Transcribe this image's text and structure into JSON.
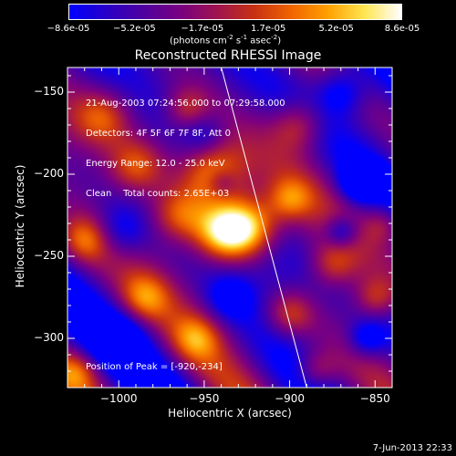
{
  "colorbar": {
    "ticks": [
      "-8.6e-05",
      "-5.2e-05",
      "-1.7e-05",
      "1.7e-05",
      "5.2e-05",
      "8.6e-05"
    ],
    "tick_values": [
      -8.6e-05,
      -5.2e-05,
      -1.7e-05,
      1.7e-05,
      5.2e-05,
      8.6e-05
    ],
    "units_prefix": "(photons cm",
    "units_sup1": "-2",
    "units_mid": " s",
    "units_sup2": "-1",
    "units_mid2": " asec",
    "units_sup3": "-2",
    "units_suffix": ")",
    "colors": [
      "#0000ff",
      "#2a00c8",
      "#5000a0",
      "#7a0082",
      "#a01450",
      "#c83214",
      "#f06400",
      "#ffa000",
      "#ffe650",
      "#ffffff"
    ]
  },
  "chart_data": {
    "type": "heatmap",
    "title": "Reconstructed RHESSI Image",
    "xlabel": "Heliocentric X (arcsec)",
    "ylabel": "Heliocentric Y (arcsec)",
    "xlim": [
      -1030,
      -840
    ],
    "ylim": [
      -330,
      -135
    ],
    "x_ticks": [
      -1000,
      -950,
      -900,
      -850
    ],
    "x_tick_labels": [
      "−1000",
      "−950",
      "−900",
      "−850"
    ],
    "y_ticks": [
      -150,
      -200,
      -250,
      -300
    ],
    "y_tick_labels": [
      "−150",
      "−200",
      "−250",
      "−300"
    ],
    "value_range": [
      -8.6e-05,
      8.6e-05
    ],
    "peak": [
      -920,
      -234
    ],
    "sources": [
      {
        "x": -925,
        "y": -232,
        "amp": 1.0,
        "s": 13
      },
      {
        "x": -945,
        "y": -200,
        "amp": 0.8,
        "s": 14
      },
      {
        "x": -940,
        "y": -235,
        "amp": 0.8,
        "s": 12
      },
      {
        "x": -965,
        "y": -225,
        "amp": 0.6,
        "s": 12
      },
      {
        "x": -990,
        "y": -195,
        "amp": 0.55,
        "s": 12
      },
      {
        "x": -1010,
        "y": -165,
        "amp": 0.5,
        "s": 12
      },
      {
        "x": -1020,
        "y": -240,
        "amp": 0.5,
        "s": 10
      },
      {
        "x": -985,
        "y": -275,
        "amp": 0.45,
        "s": 10
      },
      {
        "x": -955,
        "y": -300,
        "amp": 0.45,
        "s": 10
      },
      {
        "x": -900,
        "y": -285,
        "amp": 0.5,
        "s": 10
      },
      {
        "x": -895,
        "y": -170,
        "amp": 0.5,
        "s": 11
      },
      {
        "x": -875,
        "y": -255,
        "amp": 0.45,
        "s": 10
      },
      {
        "x": -850,
        "y": -275,
        "amp": 0.45,
        "s": 9
      },
      {
        "x": -885,
        "y": -320,
        "amp": 0.45,
        "s": 9
      },
      {
        "x": -845,
        "y": -230,
        "amp": 0.35,
        "s": 8
      },
      {
        "x": -1025,
        "y": -320,
        "amp": 0.4,
        "s": 9
      },
      {
        "x": -960,
        "y": -160,
        "amp": 0.4,
        "s": 9
      },
      {
        "x": -900,
        "y": -215,
        "amp": 0.45,
        "s": 9
      },
      {
        "x": -940,
        "y": -205,
        "amp": -0.3,
        "s": 6
      },
      {
        "x": -950,
        "y": -175,
        "amp": -0.3,
        "s": 9
      },
      {
        "x": -860,
        "y": -205,
        "amp": -0.55,
        "s": 8
      },
      {
        "x": -850,
        "y": -200,
        "amp": -0.9,
        "s": 4
      },
      {
        "x": -870,
        "y": -150,
        "amp": -0.45,
        "s": 10
      },
      {
        "x": -1000,
        "y": -300,
        "amp": -0.35,
        "s": 10
      },
      {
        "x": -870,
        "y": -235,
        "amp": -0.5,
        "s": 7
      },
      {
        "x": -855,
        "y": -300,
        "amp": -0.45,
        "s": 8
      },
      {
        "x": -1000,
        "y": -235,
        "amp": -0.35,
        "s": 11
      },
      {
        "x": -935,
        "y": -275,
        "amp": -0.35,
        "s": 10
      }
    ],
    "limb_line": [
      [
        -940,
        -135
      ],
      [
        -890,
        -330
      ]
    ]
  },
  "info": {
    "time": "21-Aug-2003 07:24:56.000 to 07:29:58.000",
    "detectors": "Detectors: 4F 5F 6F 7F 8F, Att 0",
    "energy": "Energy Range: 12.0 - 25.0 keV",
    "clean": "Clean    Total counts: 2.65E+03",
    "peak": "Position of Peak = [-920,-234]"
  },
  "footer": {
    "timestamp": "7-Jun-2013 22:33"
  }
}
